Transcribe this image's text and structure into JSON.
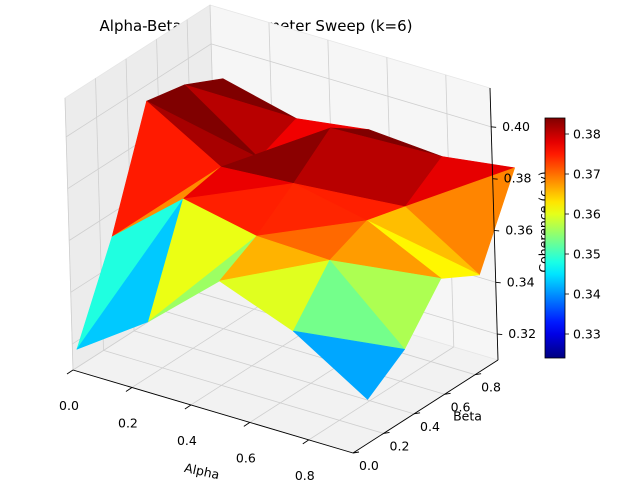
{
  "chart_data": {
    "type": "surface3d",
    "title": "Alpha-Beta Hyperparameter Sweep (k=6)",
    "xlabel": "Alpha",
    "ylabel": "Beta",
    "zlabel": "Coherence (c_v)",
    "x_ticks": [
      "0.0",
      "0.2",
      "0.4",
      "0.6",
      "0.8"
    ],
    "y_ticks": [
      "0.0",
      "0.2",
      "0.4",
      "0.6",
      "0.8"
    ],
    "z_ticks": [
      "0.32",
      "0.34",
      "0.36",
      "0.38",
      "0.40"
    ],
    "xlim": [
      0.0,
      0.95
    ],
    "ylim": [
      0.0,
      0.95
    ],
    "zlim": [
      0.31,
      0.415
    ],
    "alpha": [
      0.01,
      0.2575,
      0.505,
      0.7525,
      1.0
    ],
    "beta": [
      0.01,
      0.2575,
      0.505,
      0.7525,
      1.0
    ],
    "coherence": [
      [
        0.318,
        0.352,
        0.395,
        0.392,
        0.385
      ],
      [
        0.337,
        0.375,
        0.378,
        0.372,
        0.378
      ],
      [
        0.361,
        0.369,
        0.38,
        0.392,
        0.382
      ],
      [
        0.35,
        0.368,
        0.374,
        0.37,
        0.38
      ],
      [
        0.332,
        0.342,
        0.36,
        0.352,
        0.384
      ]
    ],
    "colormap": "jet",
    "colorbar": {
      "vmin": 0.324,
      "vmax": 0.384,
      "ticks": [
        "0.33",
        "0.34",
        "0.35",
        "0.36",
        "0.37",
        "0.38"
      ]
    },
    "grid": true
  }
}
